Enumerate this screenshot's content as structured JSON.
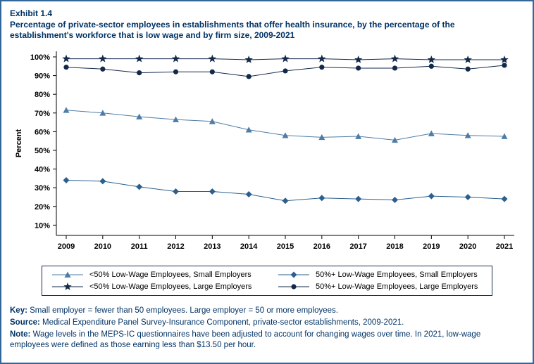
{
  "header": {
    "exhibit_label": "Exhibit 1.4"
  },
  "chart_data": {
    "type": "line",
    "title": "Percentage of private-sector employees in establishments that offer health insurance, by the percentage of the establishment's workforce that is low wage and by firm size, 2009-2021",
    "xlabel": "",
    "ylabel": "Percent",
    "x": [
      2009,
      2010,
      2011,
      2012,
      2013,
      2014,
      2015,
      2016,
      2017,
      2018,
      2019,
      2020,
      2021
    ],
    "y_ticks": [
      10,
      20,
      30,
      40,
      50,
      60,
      70,
      80,
      90,
      100
    ],
    "ylim": [
      4.5,
      103
    ],
    "grid": false,
    "legend_position": "bottom",
    "series": [
      {
        "name": "<50% Low-Wage Employees, Small Employers",
        "marker": "triangle",
        "color": "#4e7ca6",
        "values": [
          71.5,
          70,
          68,
          66.5,
          65.5,
          61,
          58,
          57,
          57.5,
          55.5,
          59,
          58,
          57.5
        ]
      },
      {
        "name": "50%+ Low-Wage Employees, Small Employers",
        "marker": "diamond",
        "color": "#2b5f8e",
        "values": [
          34,
          33.5,
          30.5,
          28,
          28,
          26.5,
          23,
          24.5,
          24,
          23.5,
          25.5,
          25,
          24
        ]
      },
      {
        "name": "<50% Low-Wage Employees, Large Employers",
        "marker": "star",
        "color": "#12294a",
        "values": [
          99,
          99,
          99,
          99,
          99,
          98.5,
          99,
          99,
          98.5,
          99,
          98.5,
          98.5,
          98.5
        ]
      },
      {
        "name": "50%+ Low-Wage Employees, Large Employers",
        "marker": "circle",
        "color": "#12294a",
        "values": [
          94.5,
          93.5,
          91.5,
          92,
          92,
          89.5,
          92.5,
          94.5,
          94,
          94,
          95,
          93.5,
          95.5
        ]
      }
    ]
  },
  "footer": {
    "key_label": "Key:",
    "key_text": " Small employer = fewer than 50 employees. Large employer = 50 or more employees.",
    "source_label": "Source:",
    "source_text": " Medical Expenditure Panel Survey-Insurance Component, private-sector establishments, 2009-2021.",
    "note_label": "Note:",
    "note_text": " Wage levels in the MEPS-IC questionnaires have been adjusted to account for changing wages over time. In 2021, low-wage employees were defined as those earning less than $13.50 per hour."
  }
}
